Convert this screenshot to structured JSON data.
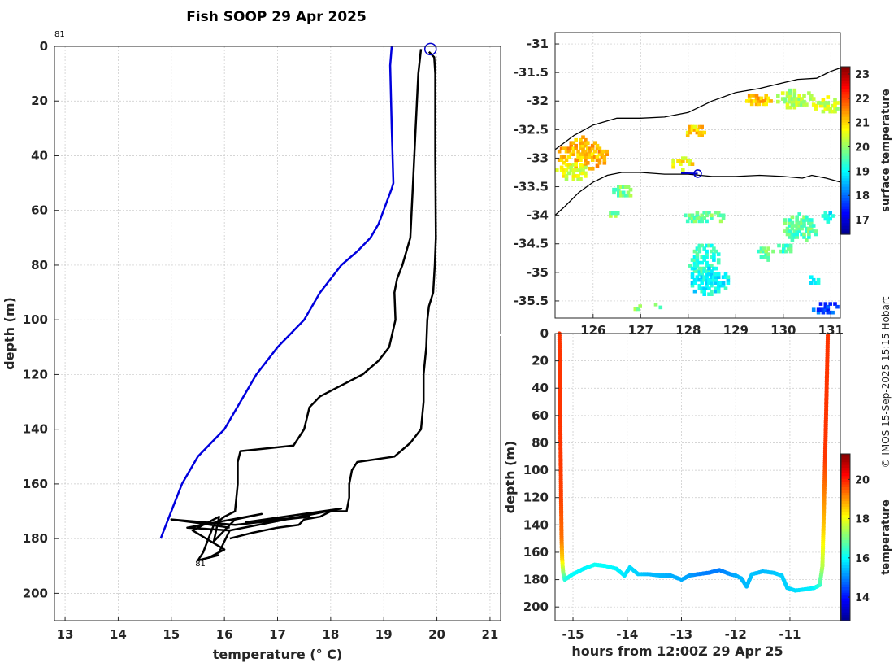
{
  "chart_data": [
    {
      "type": "line",
      "id": "profile",
      "title": "Fish SOOP 29 Apr 2025",
      "xlabel": "temperature (° C)",
      "ylabel": "depth (m)",
      "xlim": [
        12.8,
        21.2
      ],
      "ylim": [
        210,
        0
      ],
      "xticks": [
        13,
        14,
        15,
        16,
        17,
        18,
        19,
        20,
        21
      ],
      "yticks": [
        0,
        20,
        40,
        60,
        80,
        100,
        120,
        140,
        160,
        180,
        200
      ],
      "start_label": "81",
      "end_label": "81",
      "series": [
        {
          "name": "climatology",
          "color": "#0000dd",
          "points": [
            [
              19.15,
              0
            ],
            [
              19.12,
              7
            ],
            [
              19.15,
              30
            ],
            [
              19.18,
              50
            ],
            [
              19.15,
              52
            ],
            [
              18.9,
              65
            ],
            [
              18.75,
              70
            ],
            [
              18.5,
              75
            ],
            [
              18.2,
              80
            ],
            [
              17.8,
              90
            ],
            [
              17.5,
              100
            ],
            [
              17.0,
              110
            ],
            [
              16.6,
              120
            ],
            [
              16.3,
              130
            ],
            [
              16.0,
              140
            ],
            [
              15.5,
              150
            ],
            [
              15.2,
              160
            ],
            [
              15.0,
              170
            ],
            [
              14.8,
              180
            ]
          ]
        },
        {
          "name": "profile-right",
          "color": "#000000",
          "points": [
            [
              19.85,
              2
            ],
            [
              19.95,
              4
            ],
            [
              19.97,
              10
            ],
            [
              19.97,
              40
            ],
            [
              19.98,
              70
            ],
            [
              19.96,
              80
            ],
            [
              19.93,
              90
            ],
            [
              19.85,
              95
            ],
            [
              19.82,
              100
            ],
            [
              19.8,
              110
            ],
            [
              19.75,
              120
            ],
            [
              19.75,
              130
            ],
            [
              19.7,
              140
            ],
            [
              19.5,
              145
            ],
            [
              19.2,
              150
            ],
            [
              18.5,
              152
            ],
            [
              18.4,
              155
            ],
            [
              18.35,
              160
            ],
            [
              18.35,
              165
            ],
            [
              18.3,
              170
            ],
            [
              18.0,
              170
            ],
            [
              17.8,
              172
            ],
            [
              17.5,
              173
            ],
            [
              17.4,
              175
            ],
            [
              17.0,
              176
            ],
            [
              16.5,
              178
            ],
            [
              16.1,
              180
            ]
          ]
        },
        {
          "name": "profile-left",
          "color": "#000000",
          "points": [
            [
              19.7,
              1
            ],
            [
              19.65,
              10
            ],
            [
              19.6,
              30
            ],
            [
              19.55,
              50
            ],
            [
              19.5,
              70
            ],
            [
              19.35,
              80
            ],
            [
              19.25,
              85
            ],
            [
              19.2,
              90
            ],
            [
              19.22,
              100
            ],
            [
              19.1,
              110
            ],
            [
              18.9,
              115
            ],
            [
              18.6,
              120
            ],
            [
              18.1,
              125
            ],
            [
              17.8,
              128
            ],
            [
              17.6,
              132
            ],
            [
              17.5,
              140
            ],
            [
              17.3,
              146
            ],
            [
              16.8,
              147
            ],
            [
              16.3,
              148
            ],
            [
              16.25,
              152
            ],
            [
              16.25,
              160
            ],
            [
              16.2,
              170
            ],
            [
              16.0,
              172
            ],
            [
              15.8,
              175
            ],
            [
              15.7,
              180
            ],
            [
              15.6,
              185
            ],
            [
              15.5,
              188
            ],
            [
              15.9,
              186
            ]
          ]
        },
        {
          "name": "bottom-scribble",
          "color": "#000000",
          "points": [
            [
              16.1,
              176
            ],
            [
              15.4,
              174
            ],
            [
              15.0,
              173
            ],
            [
              16.2,
              175
            ],
            [
              17.6,
              172
            ],
            [
              16.4,
              174
            ],
            [
              18.2,
              169
            ],
            [
              16.1,
              177
            ],
            [
              15.3,
              176
            ],
            [
              16.7,
              171
            ],
            [
              16.2,
              173
            ],
            [
              15.8,
              181
            ],
            [
              15.9,
              172
            ],
            [
              15.4,
              177
            ],
            [
              16.0,
              184
            ],
            [
              15.7,
              187
            ],
            [
              15.9,
              185
            ],
            [
              16.1,
              177
            ]
          ]
        }
      ],
      "marker": {
        "temperature": 19.88,
        "depth": 1,
        "color": "#0000cc"
      }
    },
    {
      "type": "heatmap",
      "id": "map",
      "title": "",
      "xlabel": "",
      "ylabel": "",
      "xlim": [
        125.2,
        131.2
      ],
      "ylim": [
        -35.8,
        -30.8
      ],
      "xticks": [
        126,
        127,
        128,
        129,
        130,
        131
      ],
      "yticks": [
        -31,
        -31.5,
        -32,
        -32.5,
        -33,
        -33.5,
        -34,
        -34.5,
        -35,
        -35.5
      ],
      "colorbar": {
        "label": "surface temperature",
        "ticks": [
          17,
          18,
          19,
          20,
          21,
          22,
          23
        ],
        "range": [
          16.4,
          23.3
        ]
      },
      "coastline_north": [
        [
          125.2,
          -32.85
        ],
        [
          125.6,
          -32.6
        ],
        [
          126.0,
          -32.42
        ],
        [
          126.5,
          -32.3
        ],
        [
          127.0,
          -32.3
        ],
        [
          127.5,
          -32.28
        ],
        [
          128.0,
          -32.2
        ],
        [
          128.5,
          -32.0
        ],
        [
          129.0,
          -31.85
        ],
        [
          129.5,
          -31.78
        ],
        [
          130.0,
          -31.68
        ],
        [
          130.3,
          -31.62
        ],
        [
          130.7,
          -31.6
        ],
        [
          131.0,
          -31.48
        ],
        [
          131.2,
          -31.42
        ]
      ],
      "coastline_south": [
        [
          125.2,
          -34.0
        ],
        [
          125.4,
          -33.85
        ],
        [
          125.7,
          -33.6
        ],
        [
          126.0,
          -33.42
        ],
        [
          126.3,
          -33.3
        ],
        [
          126.6,
          -33.25
        ],
        [
          127.0,
          -33.25
        ],
        [
          127.5,
          -33.28
        ],
        [
          128.0,
          -33.28
        ],
        [
          128.5,
          -33.32
        ],
        [
          129.0,
          -33.32
        ],
        [
          129.5,
          -33.3
        ],
        [
          130.0,
          -33.32
        ],
        [
          130.4,
          -33.35
        ],
        [
          130.6,
          -33.3
        ],
        [
          130.9,
          -33.35
        ],
        [
          131.2,
          -33.42
        ]
      ],
      "track": [
        [
          127.85,
          -33.26
        ],
        [
          128.2,
          -33.27
        ]
      ],
      "track_marker": [
        128.2,
        -33.27
      ],
      "sst_patches": [
        {
          "lon": 125.75,
          "lat": -32.95,
          "rx": 0.6,
          "ry": 0.3,
          "value": 21.2
        },
        {
          "lon": 125.5,
          "lat": -33.25,
          "rx": 0.35,
          "ry": 0.18,
          "value": 20.5
        },
        {
          "lon": 127.85,
          "lat": -33.1,
          "rx": 0.25,
          "ry": 0.12,
          "value": 20.8
        },
        {
          "lon": 128.15,
          "lat": -32.55,
          "rx": 0.25,
          "ry": 0.12,
          "value": 21.0
        },
        {
          "lon": 129.4,
          "lat": -32.0,
          "rx": 0.35,
          "ry": 0.12,
          "value": 21.1
        },
        {
          "lon": 130.2,
          "lat": -32.0,
          "rx": 0.45,
          "ry": 0.18,
          "value": 20.2
        },
        {
          "lon": 130.9,
          "lat": -32.1,
          "rx": 0.3,
          "ry": 0.15,
          "value": 20.4
        },
        {
          "lon": 126.6,
          "lat": -33.6,
          "rx": 0.25,
          "ry": 0.12,
          "value": 19.8
        },
        {
          "lon": 126.4,
          "lat": -34.0,
          "rx": 0.12,
          "ry": 0.08,
          "value": 19.9
        },
        {
          "lon": 128.3,
          "lat": -34.05,
          "rx": 0.45,
          "ry": 0.12,
          "value": 19.7
        },
        {
          "lon": 128.3,
          "lat": -34.8,
          "rx": 0.35,
          "ry": 0.3,
          "value": 19.3
        },
        {
          "lon": 128.4,
          "lat": -35.2,
          "rx": 0.45,
          "ry": 0.25,
          "value": 19.0
        },
        {
          "lon": 130.3,
          "lat": -34.25,
          "rx": 0.4,
          "ry": 0.25,
          "value": 19.6
        },
        {
          "lon": 130.0,
          "lat": -34.6,
          "rx": 0.18,
          "ry": 0.1,
          "value": 19.4
        },
        {
          "lon": 129.6,
          "lat": -34.7,
          "rx": 0.2,
          "ry": 0.15,
          "value": 19.7
        },
        {
          "lon": 130.6,
          "lat": -35.15,
          "rx": 0.15,
          "ry": 0.1,
          "value": 19.2
        },
        {
          "lon": 130.9,
          "lat": -34.05,
          "rx": 0.15,
          "ry": 0.08,
          "value": 19.0
        },
        {
          "lon": 130.8,
          "lat": -35.65,
          "rx": 0.35,
          "ry": 0.12,
          "value": 17.8
        },
        {
          "lon": 127.3,
          "lat": -35.6,
          "rx": 0.12,
          "ry": 0.08,
          "value": 19.7
        },
        {
          "lon": 126.9,
          "lat": -35.65,
          "rx": 0.1,
          "ry": 0.06,
          "value": 19.9
        }
      ]
    },
    {
      "type": "scatter",
      "id": "section",
      "title": "",
      "xlabel": "hours from 12:00Z 29 Apr 25",
      "ylabel": "depth (m)",
      "xlim": [
        -15.33,
        -10.07
      ],
      "ylim": [
        210,
        0
      ],
      "xticks": [
        -15,
        -14,
        -13,
        -12,
        -11
      ],
      "yticks": [
        0,
        20,
        40,
        60,
        80,
        100,
        120,
        140,
        160,
        180,
        200
      ],
      "colorbar": {
        "label": "temperature",
        "ticks": [
          14,
          16,
          18,
          20
        ],
        "range": [
          12.8,
          21.3
        ]
      },
      "points": [
        [
          -15.25,
          0,
          19.8
        ],
        [
          -15.24,
          40,
          19.8
        ],
        [
          -15.23,
          80,
          19.8
        ],
        [
          -15.22,
          120,
          19.7
        ],
        [
          -15.21,
          150,
          19.3
        ],
        [
          -15.2,
          165,
          18.5
        ],
        [
          -15.18,
          175,
          17.2
        ],
        [
          -15.15,
          180,
          16.3
        ],
        [
          -15.0,
          176,
          16.0
        ],
        [
          -14.8,
          172,
          15.9
        ],
        [
          -14.6,
          169,
          16.1
        ],
        [
          -14.4,
          170,
          16.0
        ],
        [
          -14.2,
          172,
          15.9
        ],
        [
          -14.05,
          177,
          15.8
        ],
        [
          -13.95,
          171,
          15.7
        ],
        [
          -13.8,
          176,
          15.6
        ],
        [
          -13.6,
          176,
          15.4
        ],
        [
          -13.4,
          177,
          15.4
        ],
        [
          -13.2,
          177,
          15.3
        ],
        [
          -13.0,
          180,
          15.3
        ],
        [
          -12.85,
          177,
          15.2
        ],
        [
          -12.7,
          176,
          15.0
        ],
        [
          -12.5,
          175,
          14.9
        ],
        [
          -12.3,
          173,
          14.9
        ],
        [
          -12.1,
          176,
          15.1
        ],
        [
          -12.0,
          177,
          15.3
        ],
        [
          -11.9,
          179,
          15.4
        ],
        [
          -11.8,
          185,
          15.4
        ],
        [
          -11.7,
          176,
          15.5
        ],
        [
          -11.5,
          174,
          15.4
        ],
        [
          -11.3,
          175,
          15.5
        ],
        [
          -11.15,
          177,
          15.6
        ],
        [
          -11.05,
          186,
          15.6
        ],
        [
          -10.9,
          188,
          15.7
        ],
        [
          -10.7,
          187,
          15.8
        ],
        [
          -10.55,
          186,
          15.9
        ],
        [
          -10.45,
          184,
          16.4
        ],
        [
          -10.4,
          170,
          17.5
        ],
        [
          -10.38,
          140,
          18.6
        ],
        [
          -10.35,
          90,
          19.8
        ],
        [
          -10.3,
          0,
          19.8
        ]
      ]
    }
  ],
  "copyright": "© IMOS 15-Sep-2025 15:15 Hobart",
  "colors": {
    "axis": "#262626",
    "grid": "#c8c8c8"
  }
}
